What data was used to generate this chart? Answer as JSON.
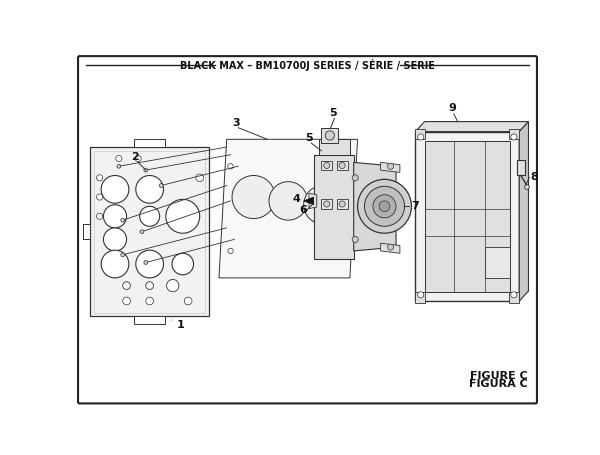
{
  "title": "BLACK MAX – BM10700J SERIES / SÉRIE / SERIE",
  "figure_label": "FIGURE C",
  "figure_label2": "FIGURA C",
  "bg_color": "#ffffff",
  "lc": "#333333",
  "lc_light": "#888888",
  "face_light": "#f2f2f2",
  "face_mid": "#e0e0e0",
  "face_dark": "#c8c8c8"
}
